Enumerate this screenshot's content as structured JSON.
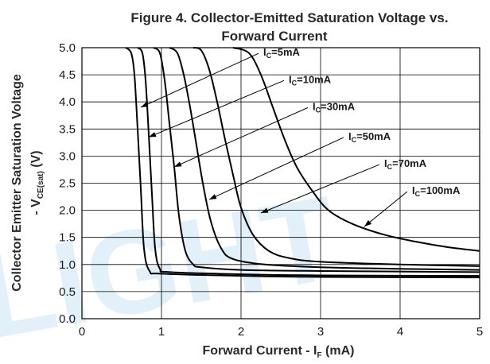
{
  "chart_data": {
    "type": "line",
    "title_line1": "Figure 4. Collector-Emitted Saturation Voltage vs.",
    "title_line2": "Forward Current",
    "xlabel": "Forward Current - I",
    "xlabel_sub": "F",
    "xlabel_unit": " (mA)",
    "ylabel_line1": "Collector Emitter Saturation Voltage",
    "ylabel_line2_prefix": "- V",
    "ylabel_line2_sub": "CE(sat)",
    "ylabel_line2_unit": " (V)",
    "xlim": [
      0,
      5
    ],
    "ylim": [
      0,
      5
    ],
    "xticks": [
      "0",
      "1",
      "2",
      "3",
      "4",
      "5"
    ],
    "yticks": [
      "0.0",
      "0.5",
      "1.0",
      "1.5",
      "2.0",
      "2.5",
      "3.0",
      "3.5",
      "4.0",
      "4.5",
      "5.0"
    ],
    "grid": true,
    "watermark_text": "LIGHT",
    "watermark_color": "#a7d2ee",
    "series": [
      {
        "name": "IC=5mA",
        "label_main": "I",
        "label_sub": "C",
        "label_rest": "=5mA",
        "x": [
          0.55,
          0.62,
          0.66,
          0.7,
          0.74,
          0.78,
          0.85,
          1.0,
          2.0,
          3.0,
          5.0
        ],
        "y": [
          5.0,
          4.9,
          4.5,
          3.5,
          2.4,
          1.3,
          0.88,
          0.83,
          0.79,
          0.77,
          0.76
        ]
      },
      {
        "name": "IC=10mA",
        "label_main": "I",
        "label_sub": "C",
        "label_rest": "=10mA",
        "x": [
          0.7,
          0.76,
          0.8,
          0.84,
          0.88,
          0.92,
          0.98,
          1.1,
          2.0,
          3.0,
          5.0
        ],
        "y": [
          5.0,
          4.9,
          4.4,
          3.4,
          2.3,
          1.3,
          0.92,
          0.86,
          0.82,
          0.8,
          0.79
        ]
      },
      {
        "name": "IC=30mA",
        "label_main": "I",
        "label_sub": "C",
        "label_rest": "=30mA",
        "x": [
          0.9,
          0.98,
          1.04,
          1.1,
          1.16,
          1.22,
          1.3,
          1.4,
          1.5,
          2.0,
          3.0,
          5.0
        ],
        "y": [
          5.0,
          4.9,
          4.4,
          3.6,
          2.8,
          1.9,
          1.25,
          1.0,
          0.95,
          0.9,
          0.88,
          0.86
        ]
      },
      {
        "name": "IC=50mA",
        "label_main": "I",
        "label_sub": "C",
        "label_rest": "=50mA",
        "x": [
          1.1,
          1.2,
          1.28,
          1.36,
          1.44,
          1.52,
          1.62,
          1.75,
          1.9,
          2.3,
          3.0,
          4.0,
          5.0
        ],
        "y": [
          5.0,
          4.9,
          4.5,
          3.9,
          3.2,
          2.5,
          1.8,
          1.3,
          1.1,
          1.0,
          0.95,
          0.92,
          0.9
        ]
      },
      {
        "name": "IC=70mA",
        "label_main": "I",
        "label_sub": "C",
        "label_rest": "=70mA",
        "x": [
          1.4,
          1.5,
          1.6,
          1.7,
          1.8,
          1.9,
          2.0,
          2.15,
          2.35,
          2.6,
          3.0,
          4.0,
          5.0
        ],
        "y": [
          5.0,
          4.95,
          4.6,
          4.0,
          3.3,
          2.65,
          2.05,
          1.55,
          1.25,
          1.12,
          1.05,
          1.0,
          0.97
        ]
      },
      {
        "name": "IC=100mA",
        "label_main": "I",
        "label_sub": "C",
        "label_rest": "=100mA",
        "x": [
          1.9,
          2.1,
          2.25,
          2.4,
          2.55,
          2.7,
          2.9,
          3.1,
          3.4,
          3.8,
          4.2,
          4.6,
          5.0
        ],
        "y": [
          5.0,
          4.9,
          4.5,
          3.9,
          3.3,
          2.8,
          2.35,
          2.0,
          1.75,
          1.55,
          1.42,
          1.32,
          1.25
        ]
      }
    ],
    "label_anchors": [
      {
        "series": 0,
        "text_x": 2.28,
        "text_y": 4.85,
        "point_x": 0.74,
        "point_y": 3.9
      },
      {
        "series": 1,
        "text_x": 2.6,
        "text_y": 4.35,
        "point_x": 0.84,
        "point_y": 3.35
      },
      {
        "series": 2,
        "text_x": 2.9,
        "text_y": 3.85,
        "point_x": 1.16,
        "point_y": 2.8
      },
      {
        "series": 3,
        "text_x": 3.35,
        "text_y": 3.3,
        "point_x": 1.6,
        "point_y": 2.2
      },
      {
        "series": 4,
        "text_x": 3.8,
        "text_y": 2.8,
        "point_x": 2.25,
        "point_y": 1.95
      },
      {
        "series": 5,
        "text_x": 4.15,
        "text_y": 2.3,
        "point_x": 3.55,
        "point_y": 1.7
      }
    ]
  }
}
